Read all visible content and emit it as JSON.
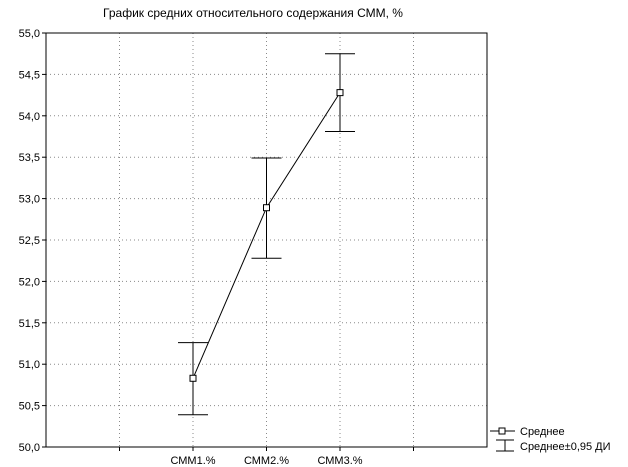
{
  "chart_data": {
    "type": "line",
    "title": "График средних относительного содержания СММ, %",
    "xlabel": "",
    "ylabel": "",
    "categories": [
      "СММ1.%",
      "СММ2.%",
      "СММ3.%"
    ],
    "ylim": [
      50.0,
      55.0
    ],
    "y_ticks": [
      "50,0",
      "50,5",
      "51,0",
      "51,5",
      "52,0",
      "52,5",
      "53,0",
      "53,5",
      "54,0",
      "54,5",
      "55,0"
    ],
    "grid": true,
    "legend_position": "bottom-right",
    "series": [
      {
        "name": "Среднее",
        "values": [
          50.83,
          52.89,
          54.28
        ],
        "ci_name": "Среднее±0,95 ДИ",
        "ci_lower": [
          50.39,
          52.28,
          53.81
        ],
        "ci_upper": [
          51.26,
          53.49,
          54.75
        ]
      }
    ]
  }
}
